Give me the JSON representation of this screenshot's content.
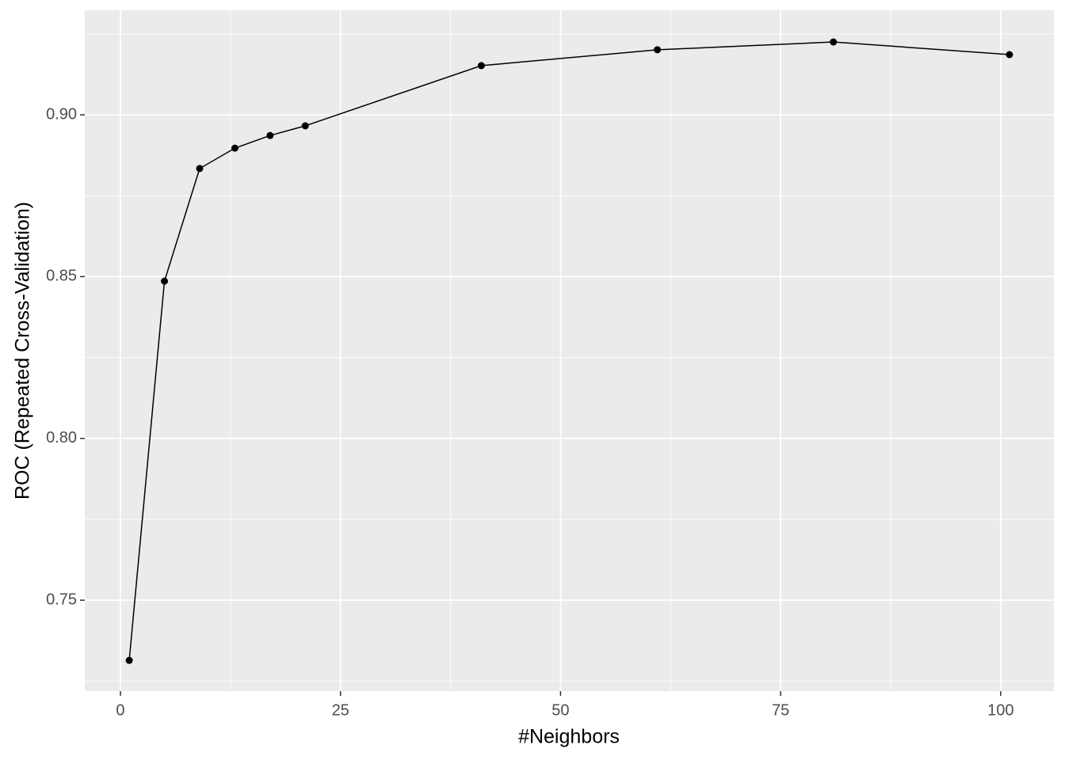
{
  "chart_data": {
    "type": "line",
    "x_label": "#Neighbors",
    "y_label": "ROC (Repeated Cross-Validation)",
    "x": [
      1,
      5,
      9,
      13,
      17,
      21,
      41,
      61,
      81,
      101
    ],
    "series": [
      {
        "color": "#000000",
        "values": [
          0.7314,
          0.8486,
          0.8834,
          0.8897,
          0.8936,
          0.8966,
          0.9152,
          0.9201,
          0.9225,
          0.9186
        ]
      }
    ],
    "xlim": [
      -4.05,
      106.05
    ],
    "xticks": [
      0,
      25,
      50,
      75,
      100
    ],
    "ylim": [
      0.7219,
      0.9323
    ],
    "yticks": [
      {
        "value": 0.75,
        "label": "0.75"
      },
      {
        "value": 0.8,
        "label": "0.80"
      },
      {
        "value": 0.85,
        "label": "0.85"
      },
      {
        "value": 0.9,
        "label": "0.90"
      }
    ],
    "grid": true,
    "markers": true
  }
}
